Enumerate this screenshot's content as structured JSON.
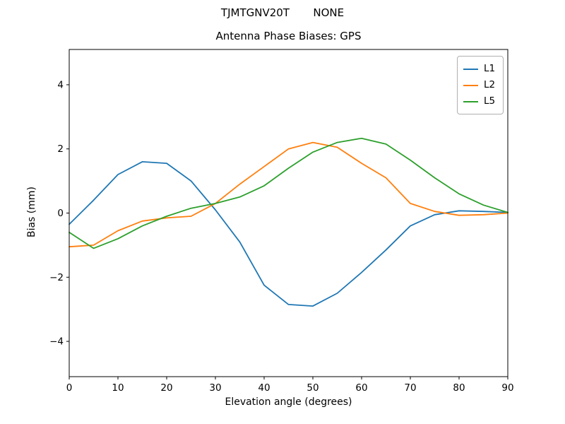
{
  "figure": {
    "suptitle": "TJMTGNV20T       NONE",
    "title": "Antenna Phase Biases: GPS",
    "xlabel": "Elevation angle (degrees)",
    "ylabel": "Bias (mm)"
  },
  "colors": {
    "background": "#ffffff",
    "axis": "#000000",
    "legend_border": "#b0b0b0"
  },
  "chart_data": {
    "type": "line",
    "suptitle": "TJMTGNV20T       NONE",
    "title": "Antenna Phase Biases: GPS",
    "xlabel": "Elevation angle (degrees)",
    "ylabel": "Bias (mm)",
    "xlim": [
      0,
      90
    ],
    "ylim": [
      -5.1,
      5.1
    ],
    "xticks": [
      0,
      10,
      20,
      30,
      40,
      50,
      60,
      70,
      80,
      90
    ],
    "yticks": [
      -4,
      -2,
      0,
      2,
      4
    ],
    "grid": false,
    "legend_position": "upper right",
    "x": [
      0,
      5,
      10,
      15,
      20,
      25,
      30,
      35,
      40,
      45,
      50,
      55,
      60,
      65,
      70,
      75,
      80,
      85,
      90
    ],
    "series": [
      {
        "name": "L1",
        "color": "#1f77b4",
        "values": [
          -0.35,
          0.4,
          1.2,
          1.6,
          1.55,
          1.0,
          0.1,
          -0.9,
          -2.25,
          -2.85,
          -2.9,
          -2.5,
          -1.85,
          -1.15,
          -0.4,
          -0.05,
          0.07,
          0.05,
          0.02
        ]
      },
      {
        "name": "L2",
        "color": "#ff7f0e",
        "values": [
          -1.05,
          -1.0,
          -0.55,
          -0.25,
          -0.15,
          -0.1,
          0.3,
          0.9,
          1.45,
          2.0,
          2.2,
          2.05,
          1.55,
          1.1,
          0.3,
          0.05,
          -0.07,
          -0.05,
          0.0
        ]
      },
      {
        "name": "L5",
        "color": "#2ca02c",
        "values": [
          -0.6,
          -1.1,
          -0.8,
          -0.4,
          -0.1,
          0.15,
          0.3,
          0.5,
          0.85,
          1.4,
          1.9,
          2.2,
          2.33,
          2.15,
          1.65,
          1.1,
          0.6,
          0.25,
          0.02
        ]
      }
    ]
  }
}
